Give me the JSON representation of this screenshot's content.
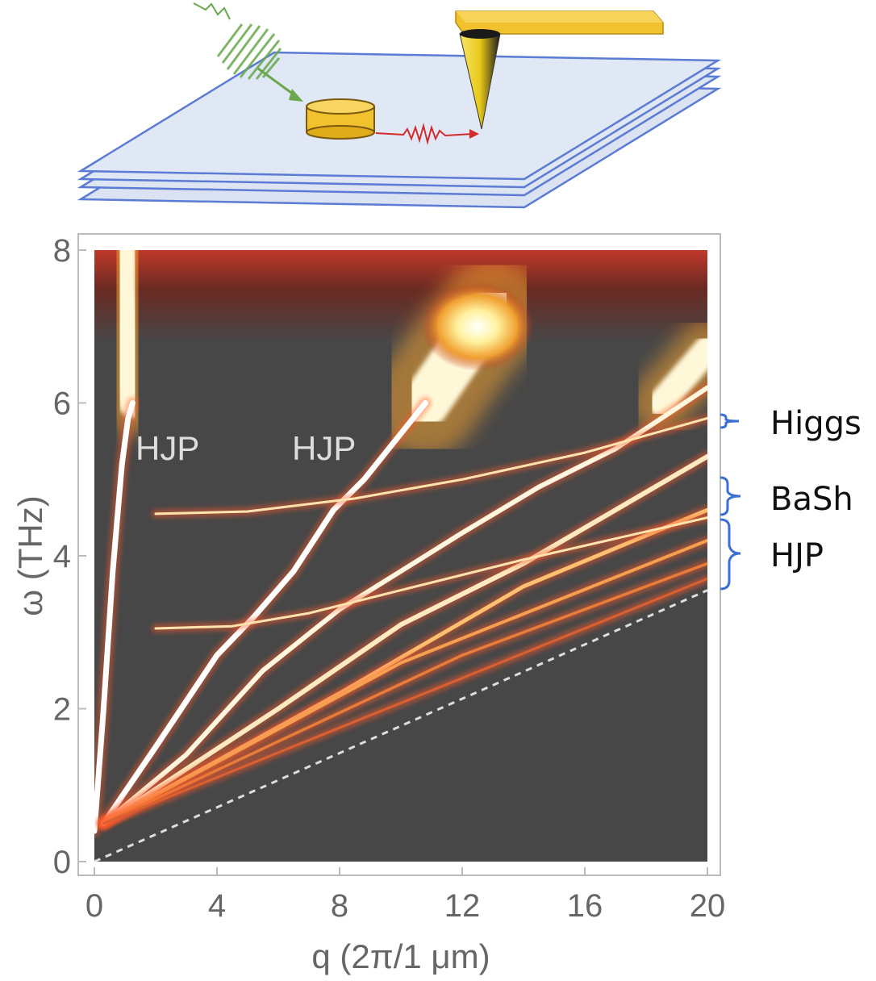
{
  "chart_data": {
    "type": "heatmap",
    "title": "",
    "xlabel": "q (2π/1 μm)",
    "ylabel": "ω (THz)",
    "xlim": [
      0,
      20
    ],
    "ylim": [
      0,
      8
    ],
    "x_ticks": [
      "0",
      "4",
      "8",
      "12",
      "16",
      "20"
    ],
    "y_ticks": [
      "0",
      "2",
      "4",
      "6",
      "8"
    ],
    "annotations": [
      "HJP",
      "HJP"
    ],
    "side_labels": [
      "Higgs",
      "BaSh",
      "HJP"
    ],
    "continuum_onset": 6.0,
    "series": [
      {
        "x": [
          0.0,
          0.3,
          0.6,
          0.9,
          1.1,
          1.25
        ],
        "y": [
          0.4,
          2.0,
          3.8,
          5.2,
          5.8,
          6.0
        ]
      },
      {
        "x": [
          0.3,
          2.0,
          4.0,
          5.2,
          6.5,
          7.8,
          8.8,
          10.0,
          10.8
        ],
        "y": [
          0.5,
          1.5,
          2.7,
          3.2,
          3.8,
          4.6,
          5.0,
          5.6,
          6.0
        ]
      },
      {
        "x": [
          0.3,
          3.0,
          5.5,
          8.0,
          10.0,
          12.0,
          14.5,
          17.0,
          18.5,
          20.0
        ],
        "y": [
          0.5,
          1.4,
          2.5,
          3.3,
          3.8,
          4.3,
          4.9,
          5.4,
          5.8,
          6.2
        ]
      },
      {
        "x": [
          0.3,
          6.0,
          10.0,
          14.0,
          17.0,
          20.0
        ],
        "y": [
          0.5,
          2.0,
          3.1,
          3.9,
          4.6,
          5.3
        ]
      },
      {
        "x": [
          0.3,
          8.0,
          14.0,
          20.0
        ],
        "y": [
          0.5,
          2.2,
          3.6,
          4.6
        ]
      },
      {
        "x": [
          0.3,
          10.0,
          20.0
        ],
        "y": [
          0.5,
          2.6,
          4.2
        ]
      },
      {
        "x": [
          0.3,
          12.0,
          20.0
        ],
        "y": [
          0.5,
          2.7,
          3.9
        ]
      },
      {
        "x": [
          0.3,
          20.0
        ],
        "y": [
          0.5,
          3.7
        ]
      },
      {
        "x": [
          2.0,
          5.0,
          8.5,
          12.0,
          16.0,
          20.0
        ],
        "y": [
          4.55,
          4.58,
          4.75,
          5.0,
          5.35,
          5.8
        ]
      },
      {
        "x": [
          2.0,
          4.5,
          7.0,
          10.0,
          14.0,
          20.0
        ],
        "y": [
          3.05,
          3.08,
          3.25,
          3.55,
          3.95,
          4.5
        ]
      },
      {
        "x": [
          0.0,
          20.0
        ],
        "y": [
          0.0,
          3.55
        ]
      }
    ],
    "grid": false,
    "legend": "none"
  }
}
